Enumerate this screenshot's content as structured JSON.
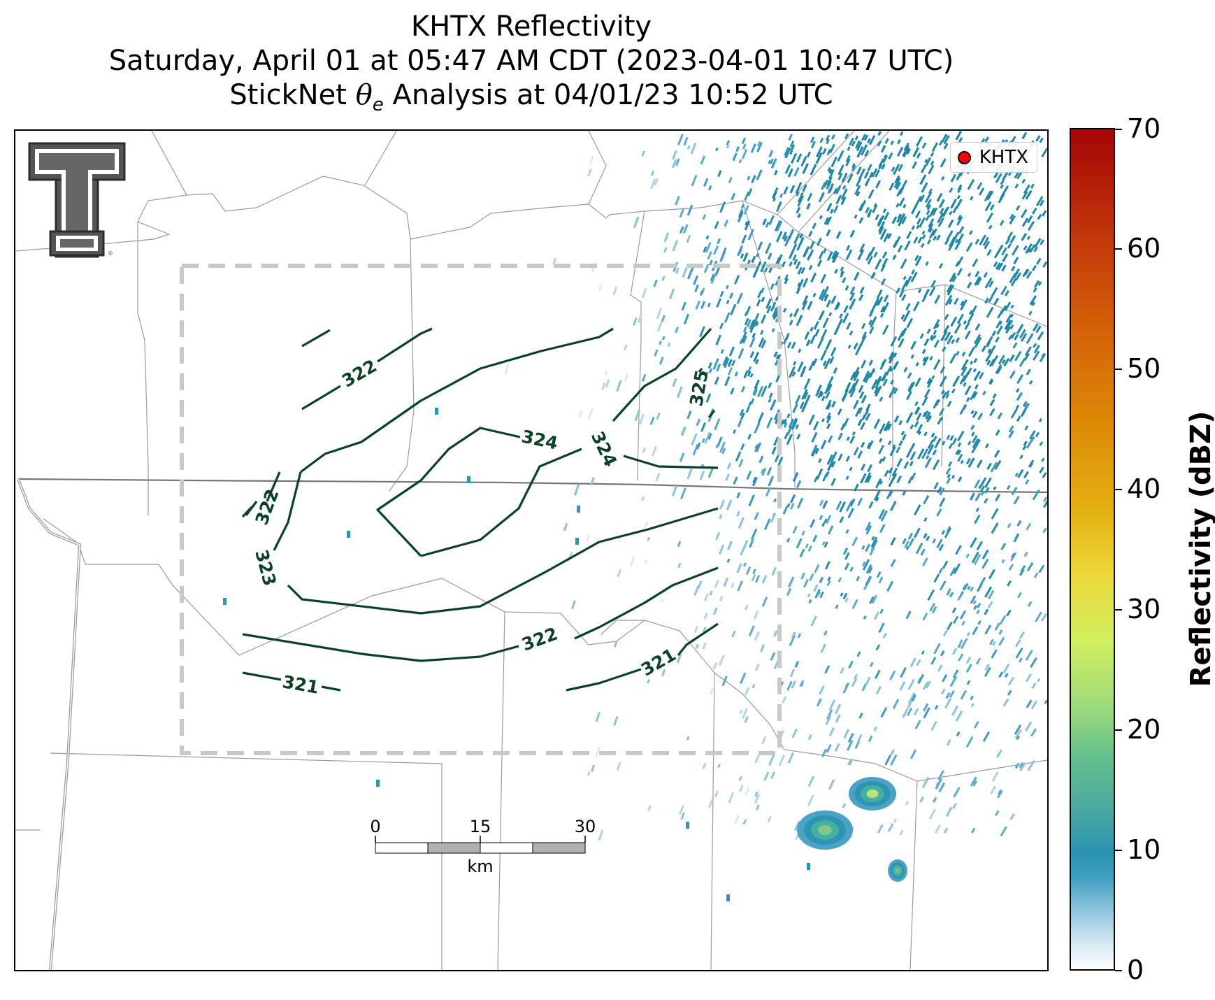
{
  "title": {
    "line1": "KHTX Reflectivity",
    "line2": "Saturday, April 01 at 05:47 AM CDT (2023-04-01 10:47 UTC)",
    "line3_prefix": "StickNet ",
    "line3_symbol": "θ",
    "line3_sub": "e",
    "line3_suffix": " Analysis at 04/01/23 10:52 UTC"
  },
  "legend": {
    "marker_color": "#ff0000",
    "label": "KHTX"
  },
  "logo": {
    "text": "Texas Tech Double T",
    "registered": "®"
  },
  "scalebar": {
    "labels": [
      "0",
      "15",
      "30"
    ],
    "unit": "km"
  },
  "contours": {
    "color": "#0b4226",
    "labels": [
      "322",
      "322",
      "323",
      "324",
      "324",
      "325",
      "322",
      "321",
      "321"
    ]
  },
  "colorbar": {
    "title": "Reflectivity (dBZ)",
    "min": 0,
    "max": 70,
    "ticks": [
      "0",
      "10",
      "20",
      "30",
      "40",
      "50",
      "60",
      "70"
    ]
  }
}
